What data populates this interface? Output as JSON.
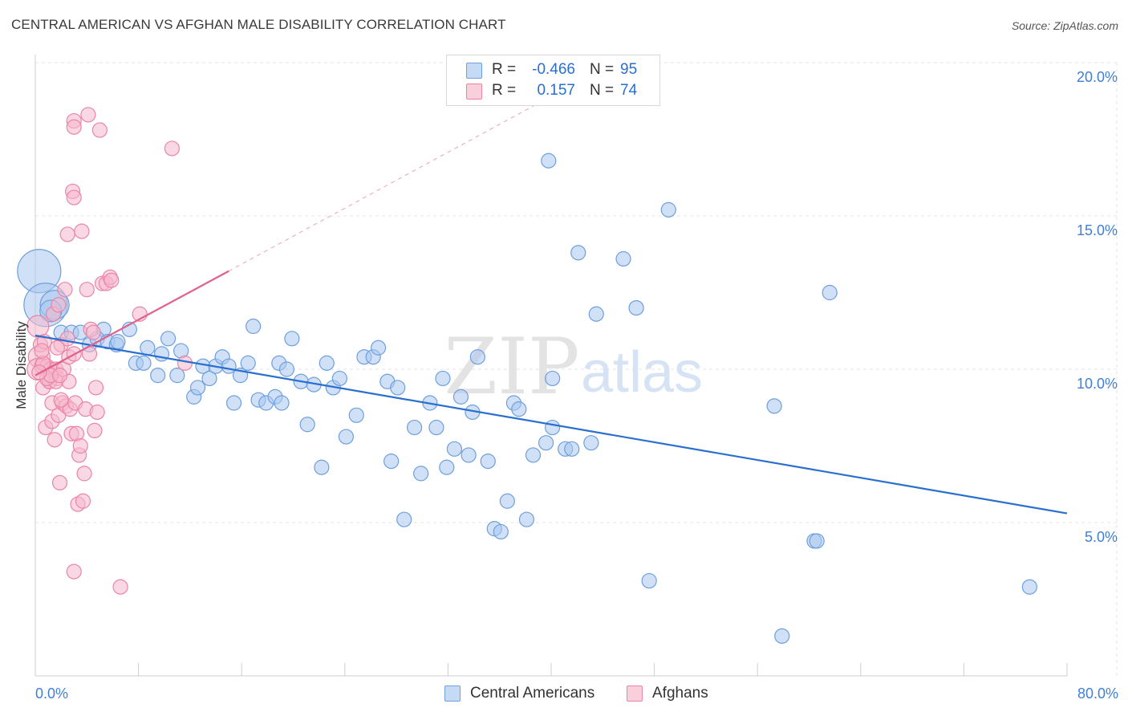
{
  "header": {
    "title": "CENTRAL AMERICAN VS AFGHAN MALE DISABILITY CORRELATION CHART",
    "source": "Source: ZipAtlas.com"
  },
  "legend": {
    "r_label": "R =",
    "n_label": "N =",
    "rows": [
      {
        "r": "-0.466",
        "n": "95"
      },
      {
        "r": "0.157",
        "n": "74"
      }
    ]
  },
  "watermark": {
    "zip": "ZIP",
    "atlas": "atlas"
  },
  "colors": {
    "blue_fill": "#a9c8f0",
    "blue_stroke": "#6f9fdc",
    "blue_line": "#2a6fcf",
    "pink_fill": "#f6b8cc",
    "pink_stroke": "#ea85a6",
    "pink_line": "#e0608e",
    "axis_text": "#3f7fd6",
    "grid": "#e4e4e4"
  },
  "chart_data": {
    "type": "scatter",
    "title": "CENTRAL AMERICAN VS AFGHAN MALE DISABILITY CORRELATION CHART",
    "xlabel": "",
    "ylabel": "Male Disability",
    "xlim": [
      0,
      80
    ],
    "ylim": [
      0,
      20
    ],
    "x_tick_labels": [
      "0.0%",
      "80.0%"
    ],
    "y_tick_labels": [
      "5.0%",
      "10.0%",
      "15.0%",
      "20.0%"
    ],
    "y_ticks": [
      5,
      10,
      15,
      20
    ],
    "x_minor_ticks": [
      8,
      16,
      24,
      32,
      40,
      48,
      56,
      64,
      72,
      80
    ],
    "grid": true,
    "legend_position": "bottom",
    "series": [
      {
        "name": "Central Americans",
        "r": -0.466,
        "n": 95,
        "trend": {
          "x": [
            0,
            80
          ],
          "y": [
            11.1,
            5.3
          ]
        },
        "points": [
          [
            0.3,
            13.2,
            3
          ],
          [
            0.8,
            12.1,
            3
          ],
          [
            1.5,
            12.1,
            2
          ],
          [
            1.2,
            11.9,
            1.5
          ],
          [
            2.0,
            11.2,
            1
          ],
          [
            2.8,
            11.2,
            1
          ],
          [
            3.5,
            11.2,
            1
          ],
          [
            4.2,
            10.8,
            1
          ],
          [
            5.3,
            11.3,
            1
          ],
          [
            4.8,
            11.0,
            1
          ],
          [
            5.6,
            10.9,
            1
          ],
          [
            6.3,
            10.8,
            1
          ],
          [
            7.3,
            11.3,
            1
          ],
          [
            6.4,
            10.9,
            1
          ],
          [
            7.8,
            10.2,
            1
          ],
          [
            8.4,
            10.2,
            1
          ],
          [
            8.7,
            10.7,
            1
          ],
          [
            9.8,
            10.5,
            1
          ],
          [
            10.3,
            11.0,
            1
          ],
          [
            11.3,
            10.6,
            1
          ],
          [
            9.5,
            9.8,
            1
          ],
          [
            11.0,
            9.8,
            1
          ],
          [
            12.3,
            9.1,
            1
          ],
          [
            12.6,
            9.4,
            1
          ],
          [
            13.0,
            10.1,
            1
          ],
          [
            13.5,
            9.7,
            1
          ],
          [
            14.0,
            10.1,
            1
          ],
          [
            14.5,
            10.4,
            1
          ],
          [
            15.0,
            10.1,
            1
          ],
          [
            15.4,
            8.9,
            1
          ],
          [
            15.9,
            9.8,
            1
          ],
          [
            16.5,
            10.2,
            1
          ],
          [
            16.9,
            11.4,
            1
          ],
          [
            17.3,
            9.0,
            1
          ],
          [
            17.9,
            8.9,
            1
          ],
          [
            18.6,
            9.1,
            1
          ],
          [
            19.1,
            8.9,
            1
          ],
          [
            18.9,
            10.2,
            1
          ],
          [
            19.5,
            10.0,
            1
          ],
          [
            19.9,
            11.0,
            1
          ],
          [
            20.6,
            9.6,
            1
          ],
          [
            21.1,
            8.2,
            1
          ],
          [
            21.6,
            9.5,
            1
          ],
          [
            22.2,
            6.8,
            1
          ],
          [
            22.6,
            10.2,
            1
          ],
          [
            23.1,
            9.4,
            1
          ],
          [
            23.6,
            9.7,
            1
          ],
          [
            24.1,
            7.8,
            1
          ],
          [
            24.9,
            8.5,
            1
          ],
          [
            25.5,
            10.4,
            1
          ],
          [
            26.2,
            10.4,
            1
          ],
          [
            26.6,
            10.7,
            1
          ],
          [
            27.3,
            9.6,
            1
          ],
          [
            27.6,
            7.0,
            1
          ],
          [
            28.1,
            9.4,
            1
          ],
          [
            28.6,
            5.1,
            1
          ],
          [
            29.4,
            8.1,
            1
          ],
          [
            29.9,
            6.6,
            1
          ],
          [
            30.6,
            8.9,
            1
          ],
          [
            31.1,
            8.1,
            1
          ],
          [
            31.6,
            9.7,
            1
          ],
          [
            31.9,
            6.8,
            1
          ],
          [
            32.5,
            7.4,
            1
          ],
          [
            33.0,
            9.1,
            1
          ],
          [
            33.6,
            7.2,
            1
          ],
          [
            33.9,
            8.6,
            1
          ],
          [
            34.3,
            10.4,
            1
          ],
          [
            35.1,
            7.0,
            1
          ],
          [
            35.6,
            4.8,
            1
          ],
          [
            36.1,
            4.7,
            1
          ],
          [
            36.6,
            5.7,
            1
          ],
          [
            37.1,
            8.9,
            1
          ],
          [
            37.5,
            8.7,
            1
          ],
          [
            38.1,
            5.1,
            1
          ],
          [
            38.6,
            7.2,
            1
          ],
          [
            39.6,
            7.6,
            1
          ],
          [
            39.8,
            16.8,
            1
          ],
          [
            40.1,
            8.1,
            1
          ],
          [
            40.1,
            9.7,
            1
          ],
          [
            41.1,
            7.4,
            1
          ],
          [
            41.6,
            7.4,
            1
          ],
          [
            42.1,
            13.8,
            1
          ],
          [
            43.1,
            7.6,
            1
          ],
          [
            43.5,
            11.8,
            1
          ],
          [
            45.6,
            13.6,
            1
          ],
          [
            46.6,
            12.0,
            1
          ],
          [
            47.6,
            3.1,
            1
          ],
          [
            49.1,
            15.2,
            1
          ],
          [
            57.3,
            8.8,
            1
          ],
          [
            57.9,
            1.3,
            1
          ],
          [
            60.4,
            4.4,
            1
          ],
          [
            60.6,
            4.4,
            1
          ],
          [
            61.6,
            12.5,
            1
          ],
          [
            77.1,
            2.9,
            1
          ]
        ]
      },
      {
        "name": "Afghans",
        "r": 0.157,
        "n": 74,
        "trend": {
          "x": [
            0,
            15
          ],
          "y": [
            9.8,
            13.2
          ]
        },
        "trend_extension": {
          "x": [
            15,
            40
          ],
          "y": [
            13.2,
            18.9
          ]
        },
        "points": [
          [
            0.2,
            11.4,
            1.5
          ],
          [
            0.3,
            10.4,
            1.5
          ],
          [
            0.2,
            10.0,
            1.5
          ],
          [
            0.4,
            10.8,
            1
          ],
          [
            0.5,
            10.1,
            1
          ],
          [
            0.6,
            9.4,
            1
          ],
          [
            0.7,
            10.9,
            1
          ],
          [
            0.8,
            8.1,
            1
          ],
          [
            0.9,
            10.1,
            1
          ],
          [
            1.1,
            9.6,
            1
          ],
          [
            1.2,
            10.0,
            1
          ],
          [
            1.3,
            8.3,
            1
          ],
          [
            1.4,
            9.9,
            1
          ],
          [
            1.5,
            7.7,
            1
          ],
          [
            1.3,
            8.9,
            1
          ],
          [
            1.6,
            10.0,
            1
          ],
          [
            1.7,
            9.7,
            1
          ],
          [
            1.8,
            8.5,
            1
          ],
          [
            1.9,
            6.3,
            1
          ],
          [
            2.0,
            10.8,
            1
          ],
          [
            2.1,
            8.9,
            1
          ],
          [
            2.2,
            10.0,
            1
          ],
          [
            2.3,
            12.6,
            1
          ],
          [
            2.4,
            8.8,
            1
          ],
          [
            2.5,
            14.4,
            1
          ],
          [
            2.6,
            10.4,
            1
          ],
          [
            2.7,
            8.7,
            1
          ],
          [
            2.8,
            7.9,
            1
          ],
          [
            2.5,
            11.0,
            1
          ],
          [
            2.9,
            15.8,
            1
          ],
          [
            3.0,
            15.6,
            1
          ],
          [
            3.1,
            8.9,
            1
          ],
          [
            3.2,
            7.9,
            1
          ],
          [
            3.0,
            10.5,
            1
          ],
          [
            3.3,
            5.6,
            1
          ],
          [
            3.4,
            7.2,
            1
          ],
          [
            3.5,
            7.5,
            1
          ],
          [
            3.6,
            14.5,
            1
          ],
          [
            3.7,
            5.7,
            1
          ],
          [
            3.8,
            6.6,
            1
          ],
          [
            3.9,
            8.7,
            1
          ],
          [
            4.0,
            12.6,
            1
          ],
          [
            4.2,
            10.5,
            1
          ],
          [
            4.3,
            11.3,
            1
          ],
          [
            4.1,
            18.3,
            1
          ],
          [
            4.6,
            8.0,
            1
          ],
          [
            4.8,
            8.6,
            1
          ],
          [
            4.7,
            9.4,
            1
          ],
          [
            4.5,
            11.2,
            1
          ],
          [
            5.0,
            17.8,
            1
          ],
          [
            5.2,
            12.8,
            1
          ],
          [
            5.5,
            12.8,
            1
          ],
          [
            5.8,
            13.0,
            1
          ],
          [
            5.9,
            12.9,
            1
          ],
          [
            6.6,
            2.9,
            1
          ],
          [
            8.1,
            11.8,
            1
          ],
          [
            10.6,
            17.2,
            1
          ],
          [
            11.6,
            10.2,
            1
          ],
          [
            3.0,
            18.1,
            1
          ],
          [
            3.0,
            17.9,
            1
          ],
          [
            1.4,
            11.8,
            1
          ],
          [
            1.8,
            12.1,
            1
          ],
          [
            3.0,
            3.4,
            1
          ],
          [
            1.1,
            9.6,
            1
          ],
          [
            1.6,
            9.6,
            1
          ],
          [
            0.9,
            9.7,
            1
          ],
          [
            1.2,
            9.8,
            1
          ],
          [
            0.6,
            10.2,
            1
          ],
          [
            2.0,
            9.0,
            1
          ],
          [
            2.6,
            9.6,
            1
          ],
          [
            1.7,
            10.7,
            1
          ],
          [
            0.3,
            9.9,
            1
          ],
          [
            0.5,
            10.6,
            1
          ],
          [
            1.9,
            9.8,
            1
          ]
        ]
      }
    ]
  }
}
